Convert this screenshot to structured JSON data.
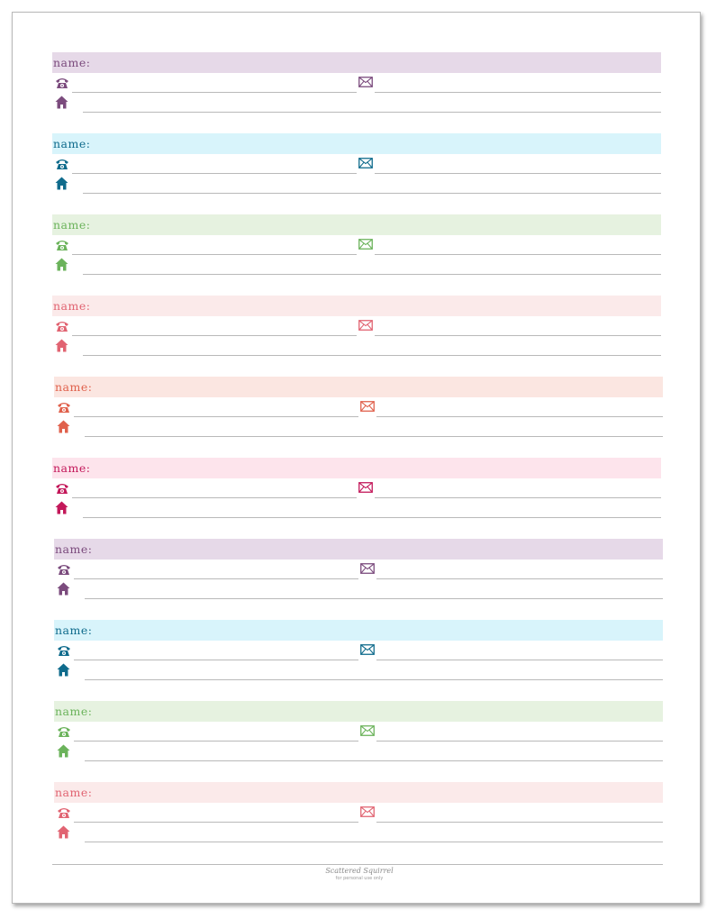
{
  "entries": [
    {
      "label": "name:",
      "color": "#7b4b7d",
      "bg": "#e6d9e8"
    },
    {
      "label": "name:",
      "color": "#0f6b8c",
      "bg": "#d8f4fb"
    },
    {
      "label": "name:",
      "color": "#6bb35b",
      "bg": "#e6f2e0"
    },
    {
      "label": "name:",
      "color": "#e16472",
      "bg": "#fbeaea"
    },
    {
      "label": "name:",
      "color": "#e0614c",
      "bg": "#fbe6e1"
    },
    {
      "label": "name:",
      "color": "#c3185a",
      "bg": "#fde4ec"
    },
    {
      "label": "name:",
      "color": "#7b4b7d",
      "bg": "#e6d9e8"
    },
    {
      "label": "name:",
      "color": "#0f6b8c",
      "bg": "#d8f4fb"
    },
    {
      "label": "name:",
      "color": "#6bb35b",
      "bg": "#e6f2e0"
    },
    {
      "label": "name:",
      "color": "#e16472",
      "bg": "#fbeaea"
    }
  ],
  "icons": {
    "phone": "telephone-icon",
    "mail": "envelope-icon",
    "home": "house-icon"
  },
  "footer": {
    "brand": "Scattered Squirrel",
    "tagline": "for personal use only"
  }
}
